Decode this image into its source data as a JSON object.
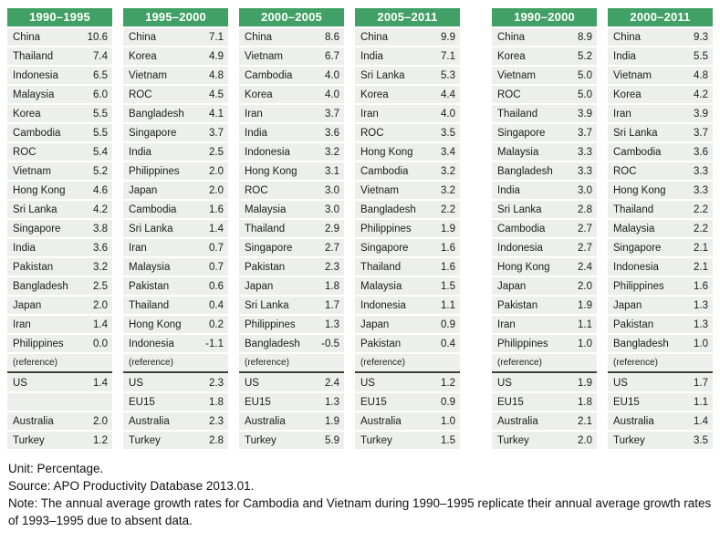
{
  "colors": {
    "header_green": "#40a065",
    "row_background": "#edefec",
    "reference_line": "#3b3b3b"
  },
  "chart_data": [
    {
      "type": "table",
      "period": "1990–1995",
      "rows": [
        [
          "China",
          "10.6"
        ],
        [
          "Thailand",
          "7.4"
        ],
        [
          "Indonesia",
          "6.5"
        ],
        [
          "Malaysia",
          "6.0"
        ],
        [
          "Korea",
          "5.5"
        ],
        [
          "Cambodia",
          "5.5"
        ],
        [
          "ROC",
          "5.4"
        ],
        [
          "Vietnam",
          "5.2"
        ],
        [
          "Hong Kong",
          "4.6"
        ],
        [
          "Sri Lanka",
          "4.2"
        ],
        [
          "Singapore",
          "3.8"
        ],
        [
          "India",
          "3.6"
        ],
        [
          "Pakistan",
          "3.2"
        ],
        [
          "Bangladesh",
          "2.5"
        ],
        [
          "Japan",
          "2.0"
        ],
        [
          "Iran",
          "1.4"
        ],
        [
          "Philippines",
          "0.0"
        ]
      ],
      "reference_label": "(reference)",
      "reference_rows": [
        [
          "US",
          "1.4"
        ],
        [
          "",
          ""
        ],
        [
          "Australia",
          "2.0"
        ],
        [
          "Turkey",
          "1.2"
        ]
      ]
    },
    {
      "type": "table",
      "period": "1995–2000",
      "rows": [
        [
          "China",
          "7.1"
        ],
        [
          "Korea",
          "4.9"
        ],
        [
          "Vietnam",
          "4.8"
        ],
        [
          "ROC",
          "4.5"
        ],
        [
          "Bangladesh",
          "4.1"
        ],
        [
          "Singapore",
          "3.7"
        ],
        [
          "India",
          "2.5"
        ],
        [
          "Philippines",
          "2.0"
        ],
        [
          "Japan",
          "2.0"
        ],
        [
          "Cambodia",
          "1.6"
        ],
        [
          "Sri Lanka",
          "1.4"
        ],
        [
          "Iran",
          "0.7"
        ],
        [
          "Malaysia",
          "0.7"
        ],
        [
          "Pakistan",
          "0.6"
        ],
        [
          "Thailand",
          "0.4"
        ],
        [
          "Hong Kong",
          "0.2"
        ],
        [
          "Indonesia",
          "-1.1"
        ]
      ],
      "reference_label": "(reference)",
      "reference_rows": [
        [
          "US",
          "2.3"
        ],
        [
          "EU15",
          "1.8"
        ],
        [
          "Australia",
          "2.3"
        ],
        [
          "Turkey",
          "2.8"
        ]
      ]
    },
    {
      "type": "table",
      "period": "2000–2005",
      "rows": [
        [
          "China",
          "8.6"
        ],
        [
          "Vietnam",
          "6.7"
        ],
        [
          "Cambodia",
          "4.0"
        ],
        [
          "Korea",
          "4.0"
        ],
        [
          "Iran",
          "3.7"
        ],
        [
          "India",
          "3.6"
        ],
        [
          "Indonesia",
          "3.2"
        ],
        [
          "Hong Kong",
          "3.1"
        ],
        [
          "ROC",
          "3.0"
        ],
        [
          "Malaysia",
          "3.0"
        ],
        [
          "Thailand",
          "2.9"
        ],
        [
          "Singapore",
          "2.7"
        ],
        [
          "Pakistan",
          "2.3"
        ],
        [
          "Japan",
          "1.8"
        ],
        [
          "Sri Lanka",
          "1.7"
        ],
        [
          "Philippines",
          "1.3"
        ],
        [
          "Bangladesh",
          "-0.5"
        ]
      ],
      "reference_label": "(reference)",
      "reference_rows": [
        [
          "US",
          "2.4"
        ],
        [
          "EU15",
          "1.3"
        ],
        [
          "Australia",
          "1.9"
        ],
        [
          "Turkey",
          "5.9"
        ]
      ]
    },
    {
      "type": "table",
      "period": "2005–2011",
      "rows": [
        [
          "China",
          "9.9"
        ],
        [
          "India",
          "7.1"
        ],
        [
          "Sri Lanka",
          "5.3"
        ],
        [
          "Korea",
          "4.4"
        ],
        [
          "Iran",
          "4.0"
        ],
        [
          "ROC",
          "3.5"
        ],
        [
          "Hong Kong",
          "3.4"
        ],
        [
          "Cambodia",
          "3.2"
        ],
        [
          "Vietnam",
          "3.2"
        ],
        [
          "Bangladesh",
          "2.2"
        ],
        [
          "Philippines",
          "1.9"
        ],
        [
          "Singapore",
          "1.6"
        ],
        [
          "Thailand",
          "1.6"
        ],
        [
          "Malaysia",
          "1.5"
        ],
        [
          "Indonesia",
          "1.1"
        ],
        [
          "Japan",
          "0.9"
        ],
        [
          "Pakistan",
          "0.4"
        ]
      ],
      "reference_label": "(reference)",
      "reference_rows": [
        [
          "US",
          "1.2"
        ],
        [
          "EU15",
          "0.9"
        ],
        [
          "Australia",
          "1.0"
        ],
        [
          "Turkey",
          "1.5"
        ]
      ]
    },
    {
      "type": "table",
      "period": "1990–2000",
      "rows": [
        [
          "China",
          "8.9"
        ],
        [
          "Korea",
          "5.2"
        ],
        [
          "Vietnam",
          "5.0"
        ],
        [
          "ROC",
          "5.0"
        ],
        [
          "Thailand",
          "3.9"
        ],
        [
          "Singapore",
          "3.7"
        ],
        [
          "Malaysia",
          "3.3"
        ],
        [
          "Bangladesh",
          "3.3"
        ],
        [
          "India",
          "3.0"
        ],
        [
          "Sri Lanka",
          "2.8"
        ],
        [
          "Cambodia",
          "2.7"
        ],
        [
          "Indonesia",
          "2.7"
        ],
        [
          "Hong Kong",
          "2.4"
        ],
        [
          "Japan",
          "2.0"
        ],
        [
          "Pakistan",
          "1.9"
        ],
        [
          "Iran",
          "1.1"
        ],
        [
          "Philippines",
          "1.0"
        ]
      ],
      "reference_label": "(reference)",
      "reference_rows": [
        [
          "US",
          "1.9"
        ],
        [
          "EU15",
          "1.8"
        ],
        [
          "Australia",
          "2.1"
        ],
        [
          "Turkey",
          "2.0"
        ]
      ]
    },
    {
      "type": "table",
      "period": "2000–2011",
      "rows": [
        [
          "China",
          "9.3"
        ],
        [
          "India",
          "5.5"
        ],
        [
          "Vietnam",
          "4.8"
        ],
        [
          "Korea",
          "4.2"
        ],
        [
          "Iran",
          "3.9"
        ],
        [
          "Sri Lanka",
          "3.7"
        ],
        [
          "Cambodia",
          "3.6"
        ],
        [
          "ROC",
          "3.3"
        ],
        [
          "Hong Kong",
          "3.3"
        ],
        [
          "Thailand",
          "2.2"
        ],
        [
          "Malaysia",
          "2.2"
        ],
        [
          "Singapore",
          "2.1"
        ],
        [
          "Indonesia",
          "2.1"
        ],
        [
          "Philippines",
          "1.6"
        ],
        [
          "Japan",
          "1.3"
        ],
        [
          "Pakistan",
          "1.3"
        ],
        [
          "Bangladesh",
          "1.0"
        ]
      ],
      "reference_label": "(reference)",
      "reference_rows": [
        [
          "US",
          "1.7"
        ],
        [
          "EU15",
          "1.1"
        ],
        [
          "Australia",
          "1.4"
        ],
        [
          "Turkey",
          "3.5"
        ]
      ]
    }
  ],
  "footer": {
    "unit": "Unit: Percentage.",
    "source": "Source: APO Productivity Database 2013.01.",
    "note": "Note: The annual average growth rates for Cambodia and Vietnam during 1990–1995 replicate their annual average growth rates of 1993–1995 due to absent data."
  }
}
